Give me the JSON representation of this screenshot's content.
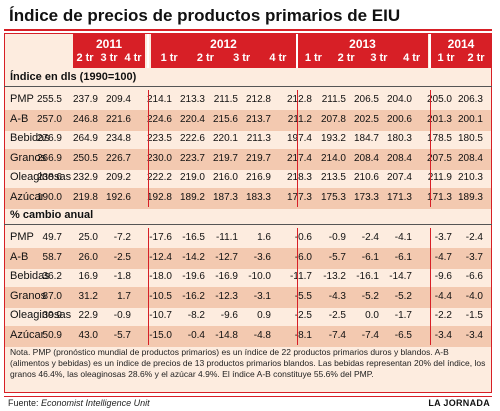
{
  "title": "Índice de precios de productos primarios de EIU",
  "chart_data": {
    "type": "table",
    "years": [
      {
        "year": "2011",
        "quarters": [
          "2 tr",
          "3 tr",
          "4 tr"
        ]
      },
      {
        "year": "2012",
        "quarters": [
          "1 tr",
          "2 tr",
          "3 tr",
          "4 tr"
        ]
      },
      {
        "year": "2013",
        "quarters": [
          "1 tr",
          "2 tr",
          "3 tr",
          "4 tr"
        ]
      },
      {
        "year": "2014",
        "quarters": [
          "1 tr",
          "2 tr"
        ]
      }
    ],
    "sections": [
      {
        "label": "Índice en dls (1990=100)",
        "rows": [
          {
            "name": "PMP",
            "values": [
              "255.5",
              "237.9",
              "209.4",
              "214.1",
              "213.3",
              "211.5",
              "212.8",
              "212.8",
              "211.5",
              "206.5",
              "204.0",
              "205.0",
              "206.3"
            ]
          },
          {
            "name": "A-B",
            "values": [
              "257.0",
              "246.8",
              "221.6",
              "224.6",
              "220.4",
              "215.6",
              "213.7",
              "211.2",
              "207.8",
              "202.5",
              "200.6",
              "201.3",
              "200.1"
            ]
          },
          {
            "name": "Bebidas",
            "values": [
              "276.9",
              "264.9",
              "234.8",
              "223.5",
              "222.6",
              "220.1",
              "211.3",
              "197.4",
              "193.2",
              "184.7",
              "180.3",
              "178.5",
              "180.5"
            ]
          },
          {
            "name": "Granos",
            "values": [
              "266.9",
              "250.5",
              "226.7",
              "230.0",
              "223.7",
              "219.7",
              "219.7",
              "217.4",
              "214.0",
              "208.4",
              "208.4",
              "207.5",
              "208.4"
            ]
          },
          {
            "name": "Oleaginosas",
            "values": [
              "238.6",
              "232.9",
              "209.2",
              "222.2",
              "219.0",
              "216.0",
              "216.9",
              "218.3",
              "213.5",
              "210.6",
              "207.4",
              "211.9",
              "210.3"
            ]
          },
          {
            "name": "Azúcar",
            "values": [
              "190.0",
              "219.8",
              "192.6",
              "192.8",
              "189.2",
              "187.3",
              "183.3",
              "177.3",
              "175.3",
              "173.3",
              "171.3",
              "171.3",
              "189.3"
            ]
          }
        ]
      },
      {
        "label": "% cambio anual",
        "rows": [
          {
            "name": "PMP",
            "values": [
              "49.7",
              "25.0",
              "-7.2",
              "-17.6",
              "-16.5",
              "-11.1",
              "1.6",
              "-0.6",
              "-0.9",
              "-2.4",
              "-4.1",
              "-3.7",
              "-2.4"
            ]
          },
          {
            "name": "A-B",
            "values": [
              "58.7",
              "26.0",
              "-2.5",
              "-12.4",
              "-14.2",
              "-12.7",
              "-3.6",
              "-6.0",
              "-5.7",
              "-6.1",
              "-6.1",
              "-4.7",
              "-3.7"
            ]
          },
          {
            "name": "Bebidas",
            "values": [
              "36.2",
              "16.9",
              "-1.8",
              "-18.0",
              "-19.6",
              "-16.9",
              "-10.0",
              "-11.7",
              "-13.2",
              "-16.1",
              "-14.7",
              "-9.6",
              "-6.6"
            ]
          },
          {
            "name": "Granos",
            "values": [
              "87.0",
              "31.2",
              "1.7",
              "-10.5",
              "-16.2",
              "-12.3",
              "-3.1",
              "-5.5",
              "-4.3",
              "-5.2",
              "-5.2",
              "-4.4",
              "-4.0"
            ]
          },
          {
            "name": "Oleaginosas",
            "values": [
              "39.9",
              "22.9",
              "-0.9",
              "-10.7",
              "-8.2",
              "-9.6",
              "0.9",
              "-2.5",
              "-2.5",
              "0.0",
              "-1.7",
              "-2.2",
              "-1.5"
            ]
          },
          {
            "name": "Azúcar",
            "values": [
              "50.9",
              "43.0",
              "-5.7",
              "-15.0",
              "-0.4",
              "-14.8",
              "-4.8",
              "-8.1",
              "-7.4",
              "-7.4",
              "-6.5",
              "-3.4",
              "-3.4"
            ]
          }
        ]
      }
    ]
  },
  "note": "Nota. PMP (pronóstico mundial de productos primarios) es un índice de 22 productos primarios duros y blandos. A-B (alimentos y bebidas) es un índice de precios de 13 productos primarios blandos. Las bebidas representan 20% del índice, los granos 46.4%, las oleaginosas 28.6% y el azúcar 4.9%. El índice A-B constituye 55.6% del PMP.",
  "source_prefix": "Fuente: ",
  "source_name": "Economist Intelligence Unit",
  "brand": "LA JORNADA",
  "colors": {
    "accent": "#d71f26",
    "panel": "#fdecdf",
    "stripe": "#f3c9b0"
  }
}
